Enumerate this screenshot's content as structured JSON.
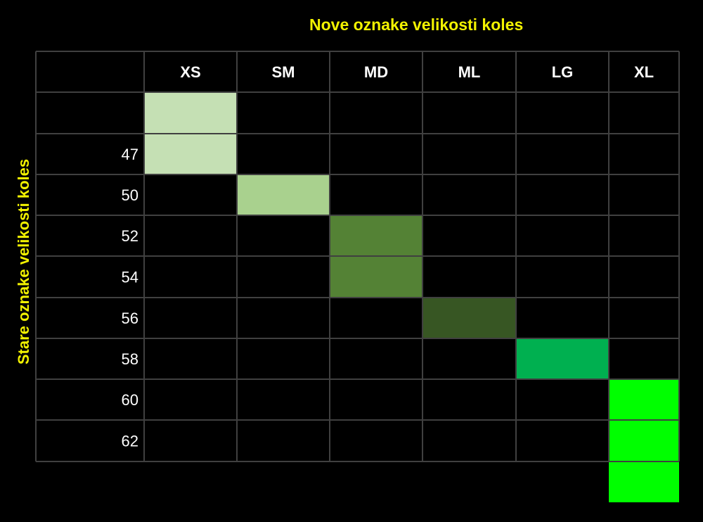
{
  "chart_data": {
    "type": "table",
    "title": "Nove oznake velikosti koles",
    "ylabel": "Stare oznake velikosti koles",
    "columns": [
      "XS",
      "SM",
      "MD",
      "ML",
      "LG",
      "XL"
    ],
    "rows": [
      "",
      "47",
      "50",
      "52",
      "54",
      "56",
      "58",
      "60",
      "62"
    ],
    "mapping": [
      {
        "size": "XS",
        "rows": [
          "",
          "47"
        ],
        "color": "#c5e0b4"
      },
      {
        "size": "SM",
        "rows": [
          "50"
        ],
        "color": "#a9d18e"
      },
      {
        "size": "MD",
        "rows": [
          "52",
          "54"
        ],
        "color": "#548235"
      },
      {
        "size": "ML",
        "rows": [
          "56"
        ],
        "color": "#375623"
      },
      {
        "size": "LG",
        "rows": [
          "58"
        ],
        "color": "#00b050"
      },
      {
        "size": "XL",
        "rows": [
          "60",
          "62"
        ],
        "color": "#00ff00"
      }
    ],
    "colors": {
      "background": "#000000",
      "grid": "#404040",
      "label_text": "#ffffff",
      "title_text": "#f2f200"
    }
  }
}
